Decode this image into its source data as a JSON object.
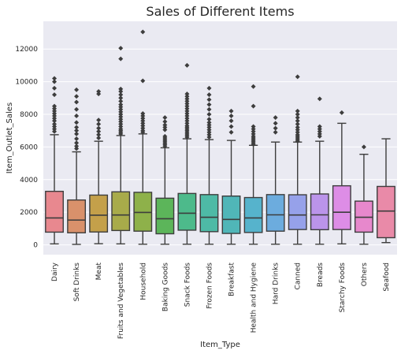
{
  "chart_data": {
    "type": "boxplot",
    "title": "Sales of Different Items",
    "xlabel": "Item_Type",
    "ylabel": "Item_Outlet_Sales",
    "ylim": [
      -600,
      13700
    ],
    "yticks": [
      0,
      2000,
      4000,
      6000,
      8000,
      10000,
      12000
    ],
    "grid": true,
    "categories": [
      "Dairy",
      "Soft Drinks",
      "Meat",
      "Fruits and Vegetables",
      "Household",
      "Baking Goods",
      "Snack Foods",
      "Frozen Foods",
      "Breakfast",
      "Health and Hygiene",
      "Hard Drinks",
      "Canned",
      "Breads",
      "Starchy Foods",
      "Others",
      "Seafood"
    ],
    "colors": [
      "#e8888f",
      "#d9916b",
      "#c4a04a",
      "#a8ab4a",
      "#8eb14a",
      "#5cb55a",
      "#4dba8b",
      "#4ebaa6",
      "#50b6b8",
      "#56b3cc",
      "#6cacde",
      "#96a1ea",
      "#bb94ea",
      "#dd8de6",
      "#e788cc",
      "#e98aa8"
    ],
    "series": [
      {
        "min": 60,
        "q1": 780,
        "median": 1650,
        "q3": 3280,
        "max": 6750,
        "outliers": [
          6950,
          7100,
          7250,
          7400,
          7600,
          7750,
          7900,
          8050,
          8200,
          8350,
          8500,
          9200,
          9600,
          10000,
          10200
        ]
      },
      {
        "min": 30,
        "q1": 740,
        "median": 1520,
        "q3": 2750,
        "max": 5700,
        "outliers": [
          5900,
          6050,
          6250,
          6500,
          6800,
          7000,
          7200,
          7500,
          7900,
          8300,
          8750,
          9100,
          9500
        ]
      },
      {
        "min": 70,
        "q1": 790,
        "median": 1820,
        "q3": 3050,
        "max": 6350,
        "outliers": [
          6550,
          6750,
          6950,
          7150,
          7400,
          7650,
          9250,
          9400
        ]
      },
      {
        "min": 60,
        "q1": 880,
        "median": 1830,
        "q3": 3250,
        "max": 6700,
        "outliers": [
          6800,
          6900,
          7000,
          7100,
          7250,
          7400,
          7550,
          7700,
          7850,
          8000,
          8150,
          8300,
          8450,
          8600,
          8800,
          9000,
          9200,
          9400,
          9550,
          11400,
          12050
        ]
      },
      {
        "min": 40,
        "q1": 840,
        "median": 1990,
        "q3": 3220,
        "max": 6800,
        "outliers": [
          6900,
          7000,
          7150,
          7300,
          7450,
          7600,
          7750,
          7900,
          8050,
          10050,
          13050
        ]
      },
      {
        "min": 40,
        "q1": 680,
        "median": 1600,
        "q3": 2860,
        "max": 5950,
        "outliers": [
          6050,
          6150,
          6250,
          6350,
          6450,
          6550,
          6650,
          7050,
          7200,
          7350,
          7550,
          7800
        ]
      },
      {
        "min": 40,
        "q1": 900,
        "median": 1940,
        "q3": 3150,
        "max": 6500,
        "outliers": [
          6600,
          6700,
          6800,
          6900,
          7000,
          7100,
          7200,
          7300,
          7450,
          7600,
          7750,
          7900,
          8050,
          8200,
          8350,
          8500,
          8650,
          8800,
          8950,
          9100,
          9250,
          11000
        ]
      },
      {
        "min": 40,
        "q1": 810,
        "median": 1690,
        "q3": 3080,
        "max": 6450,
        "outliers": [
          6600,
          6750,
          6900,
          7050,
          7200,
          7350,
          7500,
          7700,
          8000,
          8300,
          8600,
          8900,
          9200,
          9600
        ]
      },
      {
        "min": 40,
        "q1": 700,
        "median": 1560,
        "q3": 2990,
        "max": 6400,
        "outliers": [
          6900,
          7250,
          7600,
          7900,
          8200
        ]
      },
      {
        "min": 40,
        "q1": 760,
        "median": 1650,
        "q3": 2900,
        "max": 6100,
        "outliers": [
          6150,
          6250,
          6350,
          6450,
          6550,
          6650,
          6800,
          6950,
          7100,
          7250,
          8500,
          9700
        ]
      },
      {
        "min": 40,
        "q1": 840,
        "median": 1840,
        "q3": 3080,
        "max": 6300,
        "outliers": [
          6900,
          7150,
          7450,
          7800
        ]
      },
      {
        "min": 40,
        "q1": 940,
        "median": 1830,
        "q3": 3070,
        "max": 6300,
        "outliers": [
          6350,
          6450,
          6550,
          6650,
          6750,
          6900,
          7050,
          7200,
          7400,
          7600,
          7800,
          8000,
          8200,
          10300
        ]
      },
      {
        "min": 40,
        "q1": 930,
        "median": 1840,
        "q3": 3120,
        "max": 6350,
        "outliers": [
          6650,
          6800,
          6950,
          7100,
          7250,
          8950
        ]
      },
      {
        "min": 60,
        "q1": 940,
        "median": 2000,
        "q3": 3620,
        "max": 7450,
        "outliers": [
          8100
        ]
      },
      {
        "min": 40,
        "q1": 780,
        "median": 1690,
        "q3": 2680,
        "max": 5550,
        "outliers": [
          6000
        ]
      },
      {
        "min": 140,
        "q1": 440,
        "median": 2070,
        "q3": 3580,
        "max": 6500,
        "outliers": []
      }
    ]
  }
}
